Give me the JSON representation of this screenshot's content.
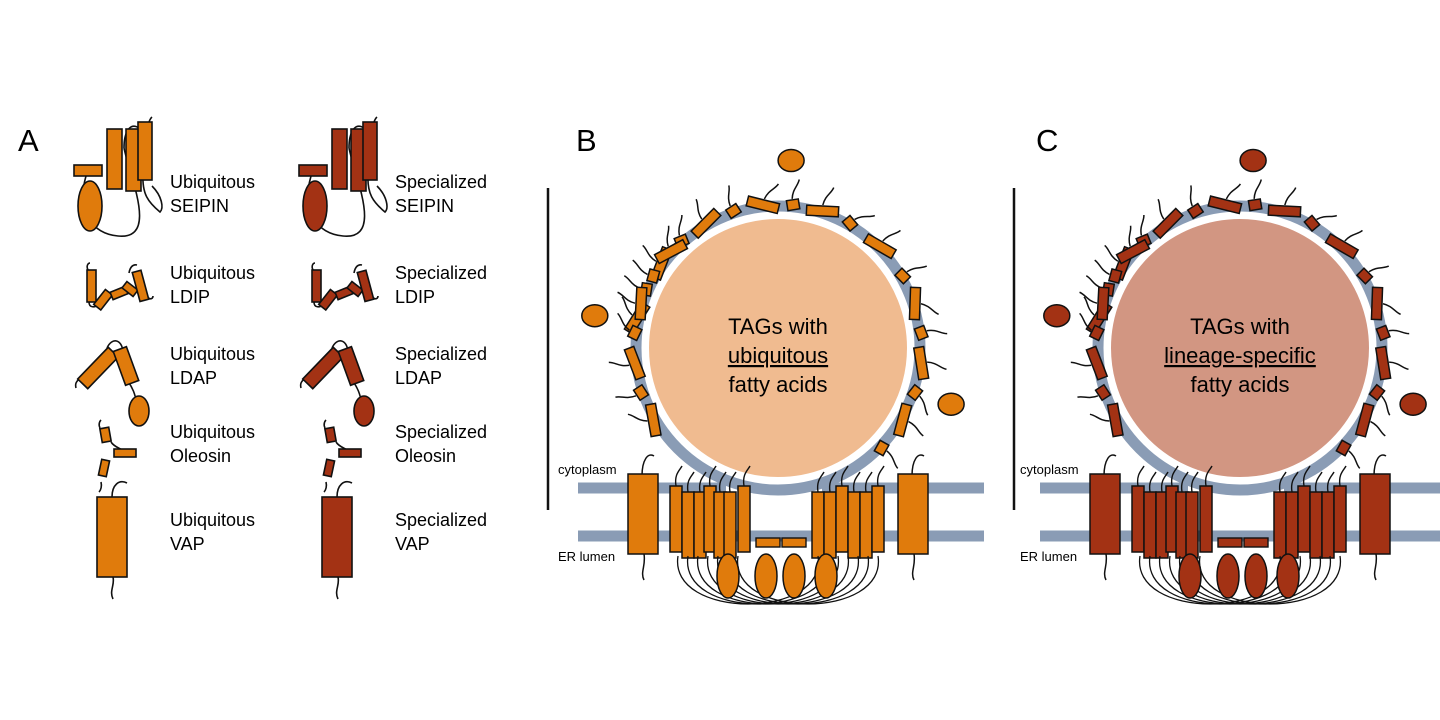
{
  "colors": {
    "ubiquitous": "#e07b0c",
    "specialized": "#a33214",
    "membrane": "#8a9cb5",
    "tag_ubiquitous": "#f0bb90",
    "tag_specialized": "#d29682",
    "outline": "#111111"
  },
  "panels": {
    "a": "A",
    "b": "B",
    "c": "C"
  },
  "legend": {
    "ubiquitous": [
      {
        "l1": "Ubiquitous",
        "l2": "SEIPIN",
        "icon": "seipin-icon"
      },
      {
        "l1": "Ubiquitous",
        "l2": "LDIP",
        "icon": "ldip-icon"
      },
      {
        "l1": "Ubiquitous",
        "l2": "LDAP",
        "icon": "ldap-icon"
      },
      {
        "l1": "Ubiquitous",
        "l2": "Oleosin",
        "icon": "oleosin-icon"
      },
      {
        "l1": "Ubiquitous",
        "l2": "VAP",
        "icon": "vap-icon"
      }
    ],
    "specialized": [
      {
        "l1": "Specialized",
        "l2": "SEIPIN",
        "icon": "seipin-icon"
      },
      {
        "l1": "Specialized",
        "l2": "LDIP",
        "icon": "ldip-icon"
      },
      {
        "l1": "Specialized",
        "l2": "LDAP",
        "icon": "ldap-icon"
      },
      {
        "l1": "Specialized",
        "l2": "Oleosin",
        "icon": "oleosin-icon"
      },
      {
        "l1": "Specialized",
        "l2": "VAP",
        "icon": "vap-icon"
      }
    ]
  },
  "panel_b": {
    "tag_line1": "TAGs with",
    "tag_line2": "ubiquitous",
    "tag_line3": "fatty acids",
    "cytoplasm": "cytoplasm",
    "er_lumen": "ER lumen"
  },
  "panel_c": {
    "tag_line1": "TAGs with",
    "tag_line2": "lineage-specific",
    "tag_line3": "fatty acids",
    "cytoplasm": "cytoplasm",
    "er_lumen": "ER lumen"
  }
}
